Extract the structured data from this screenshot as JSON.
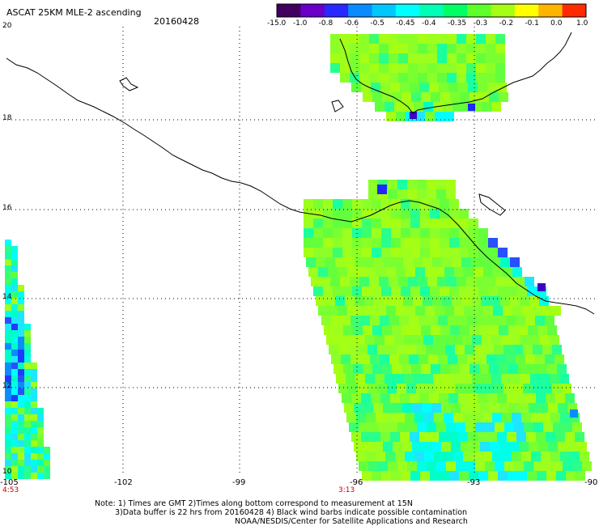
{
  "header": {
    "title": "ASCAT 25KM MLE-2 ascending",
    "date": "20160428"
  },
  "colorbar": {
    "ticks": [
      "-15.0",
      "-1.0",
      "-0.8",
      "-0.6",
      "-0.5",
      "-0.45",
      "-0.4",
      "-0.35",
      "-0.3",
      "-0.2",
      "-0.1",
      "0.0",
      "1.0"
    ],
    "colors": [
      "#400060",
      "#6a00c8",
      "#2828ff",
      "#0a8cff",
      "#00c8ff",
      "#00ffff",
      "#00ffb4",
      "#00ff64",
      "#5fff2a",
      "#a4ff14",
      "#ffff00",
      "#ffb400",
      "#ff2a00"
    ]
  },
  "map": {
    "lat_labels": [
      "20",
      "18",
      "16",
      "14",
      "12",
      "10"
    ],
    "lon_labels": [
      "-105",
      "-102",
      "-99",
      "-96",
      "-93",
      "-90"
    ],
    "time_labels": [
      {
        "lon": "-105",
        "text": "4:53"
      },
      {
        "lon": "-96",
        "text": "3:13"
      }
    ]
  },
  "notes": {
    "line1": "Note: 1) Times are GMT 2)Times along bottom correspond to measurement at 15N",
    "line2": "3)Data buffer is 22 hrs from 20160428 4) Black wind barbs indicate possible contamination",
    "line3": "NOAA/NESDIS/Center for Satellite Applications and Research"
  }
}
